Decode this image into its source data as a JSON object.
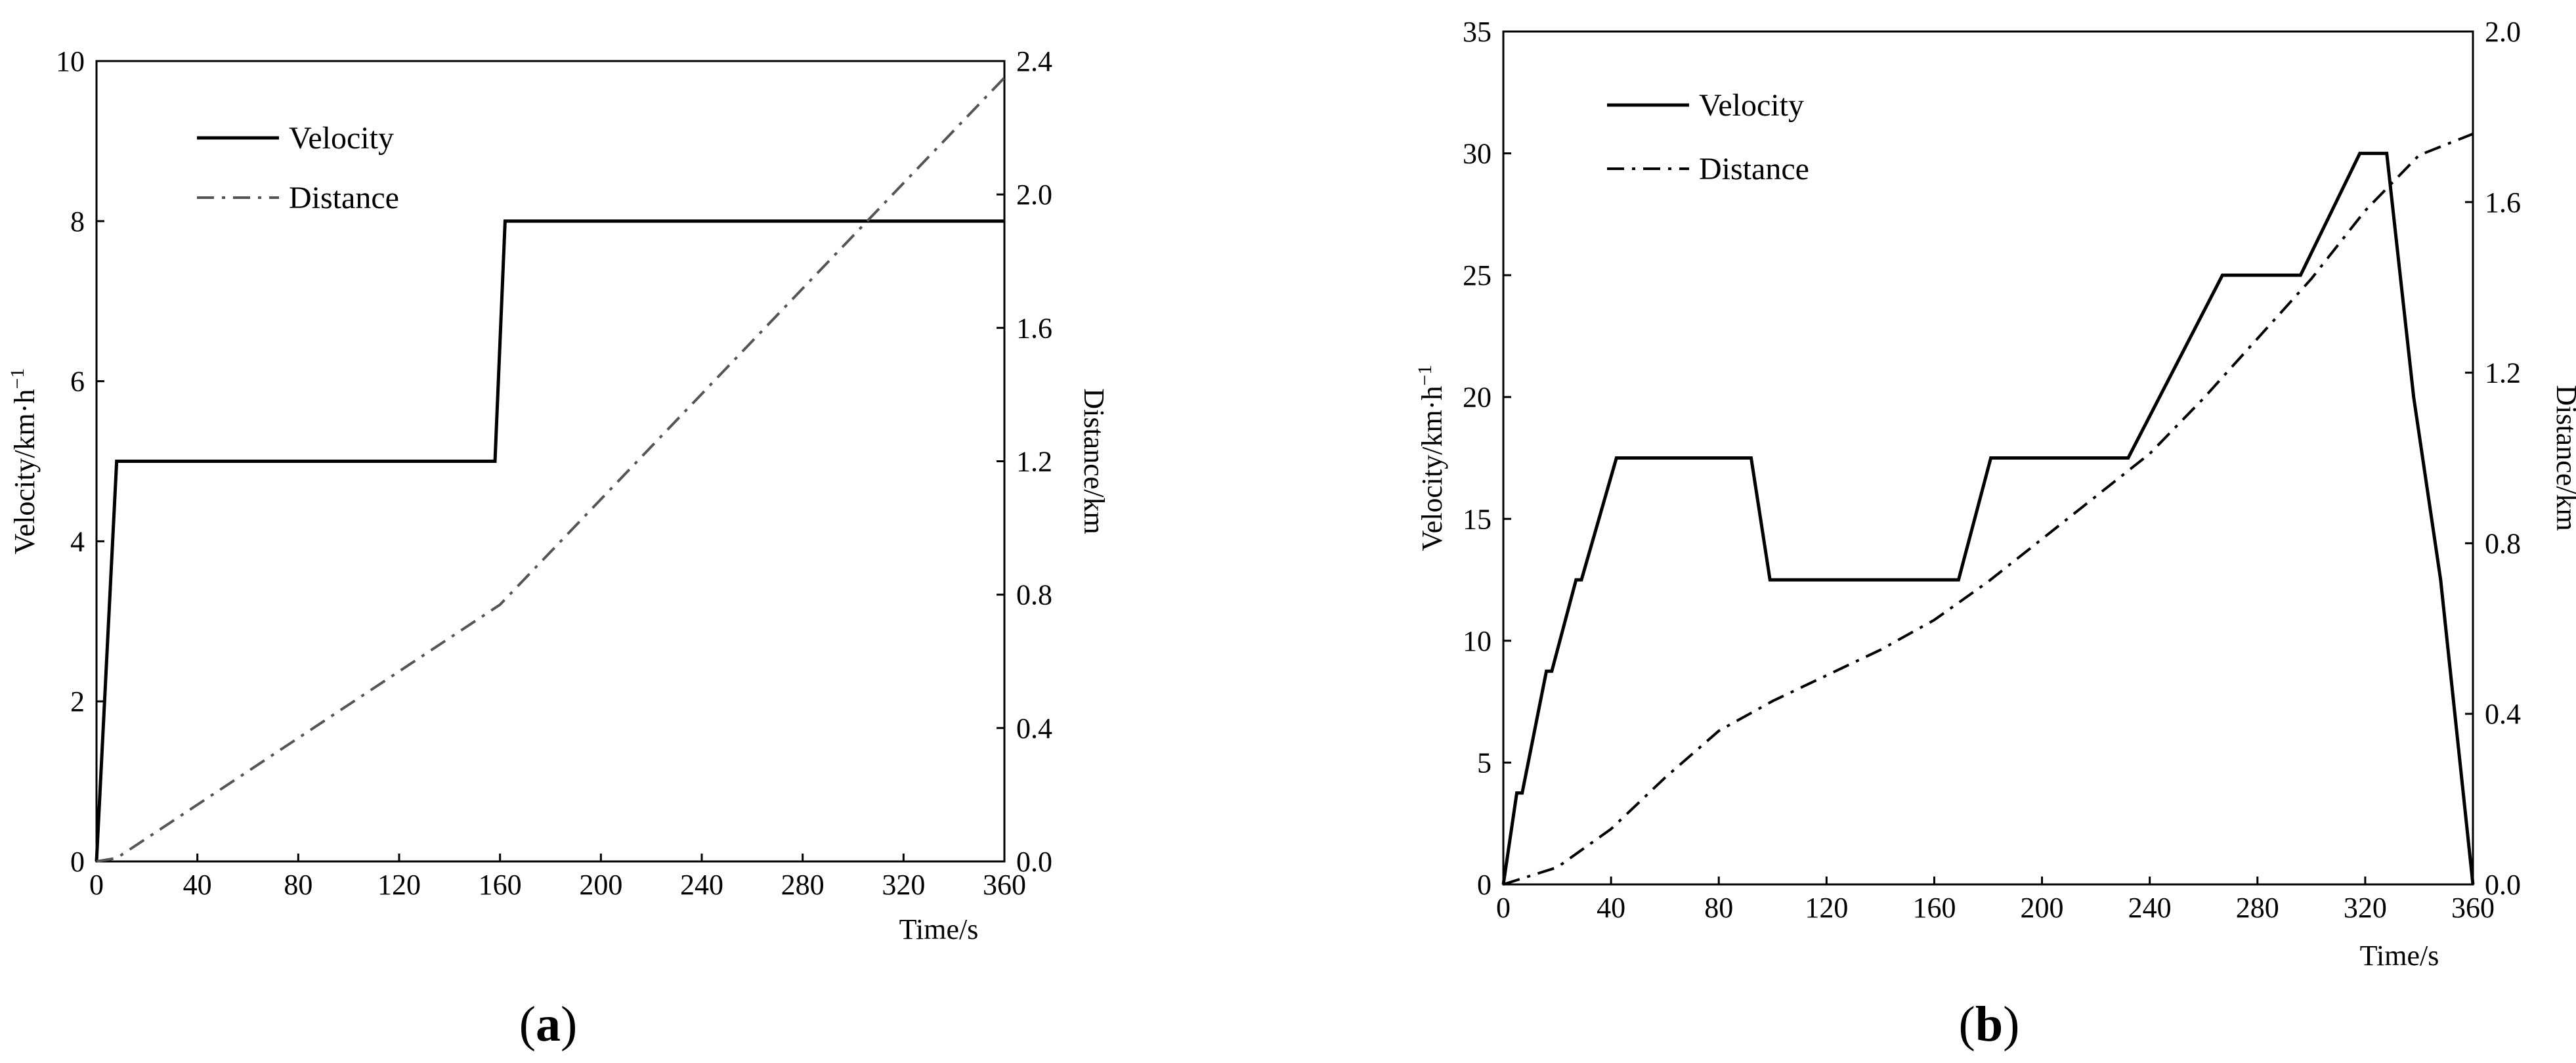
{
  "chart_data": [
    {
      "type": "line",
      "panel_label": "a",
      "xlabel": "Time/s",
      "ylabel": "Velocity/km·h",
      "ylabel_sup": "−1",
      "y2label": "Distance/km",
      "xlim": [
        0,
        360
      ],
      "ylim": [
        0,
        10
      ],
      "y2lim": [
        0,
        2.4
      ],
      "xticks": [
        0,
        40,
        80,
        120,
        160,
        200,
        240,
        280,
        320,
        360
      ],
      "yticks": [
        0,
        2,
        4,
        6,
        8,
        10
      ],
      "y2ticks": [
        0.0,
        0.4,
        0.8,
        1.2,
        1.6,
        2.0,
        2.4
      ],
      "y2tick_labels": [
        "0.0",
        "0.4",
        "0.8",
        "1.2",
        "1.6",
        "2.0",
        "2.4"
      ],
      "legend_position": "top-left",
      "series": [
        {
          "name": "Velocity",
          "axis": "left",
          "style": "solid",
          "color": "#000000",
          "x": [
            0,
            8,
            158,
            162,
            360
          ],
          "y": [
            0,
            5,
            5,
            8,
            8
          ]
        },
        {
          "name": "Distance",
          "axis": "right",
          "style": "dashdot",
          "color": "#555555",
          "x": [
            0,
            8,
            160,
            360
          ],
          "y": [
            0.0,
            0.01,
            0.77,
            2.35
          ]
        }
      ]
    },
    {
      "type": "line",
      "panel_label": "b",
      "xlabel": "Time/s",
      "ylabel": "Velocity/km·h",
      "ylabel_sup": "−1",
      "y2label": "Distance/km",
      "xlim": [
        0,
        360
      ],
      "ylim": [
        0,
        35
      ],
      "y2lim": [
        0,
        2.0
      ],
      "xticks": [
        0,
        40,
        80,
        120,
        160,
        200,
        240,
        280,
        320,
        360
      ],
      "yticks": [
        0,
        5,
        10,
        15,
        20,
        25,
        30,
        35
      ],
      "y2ticks": [
        0.0,
        0.4,
        0.8,
        1.2,
        1.6,
        2.0
      ],
      "y2tick_labels": [
        "0.0",
        "0.4",
        "0.8",
        "1.2",
        "1.6",
        "2.0"
      ],
      "legend_position": "top-left",
      "series": [
        {
          "name": "Velocity",
          "axis": "left",
          "style": "solid",
          "color": "#000000",
          "x": [
            0,
            5,
            7,
            16,
            18,
            27,
            29,
            42,
            92,
            99,
            169,
            181,
            232,
            267,
            296,
            318,
            328,
            338,
            348,
            360
          ],
          "y": [
            0,
            3.75,
            3.75,
            8.75,
            8.75,
            12.5,
            12.5,
            17.5,
            17.5,
            12.5,
            12.5,
            17.5,
            17.5,
            25,
            25,
            30,
            30,
            20,
            12.5,
            0
          ]
        },
        {
          "name": "Distance",
          "axis": "right",
          "style": "dashdot",
          "color": "#000000",
          "x": [
            0,
            20,
            40,
            60,
            80,
            100,
            120,
            140,
            160,
            180,
            200,
            220,
            240,
            260,
            280,
            300,
            320,
            340,
            360
          ],
          "y": [
            0.0,
            0.04,
            0.13,
            0.25,
            0.36,
            0.43,
            0.49,
            0.55,
            0.62,
            0.71,
            0.81,
            0.91,
            1.01,
            1.14,
            1.28,
            1.42,
            1.58,
            1.71,
            1.76
          ]
        }
      ]
    }
  ]
}
